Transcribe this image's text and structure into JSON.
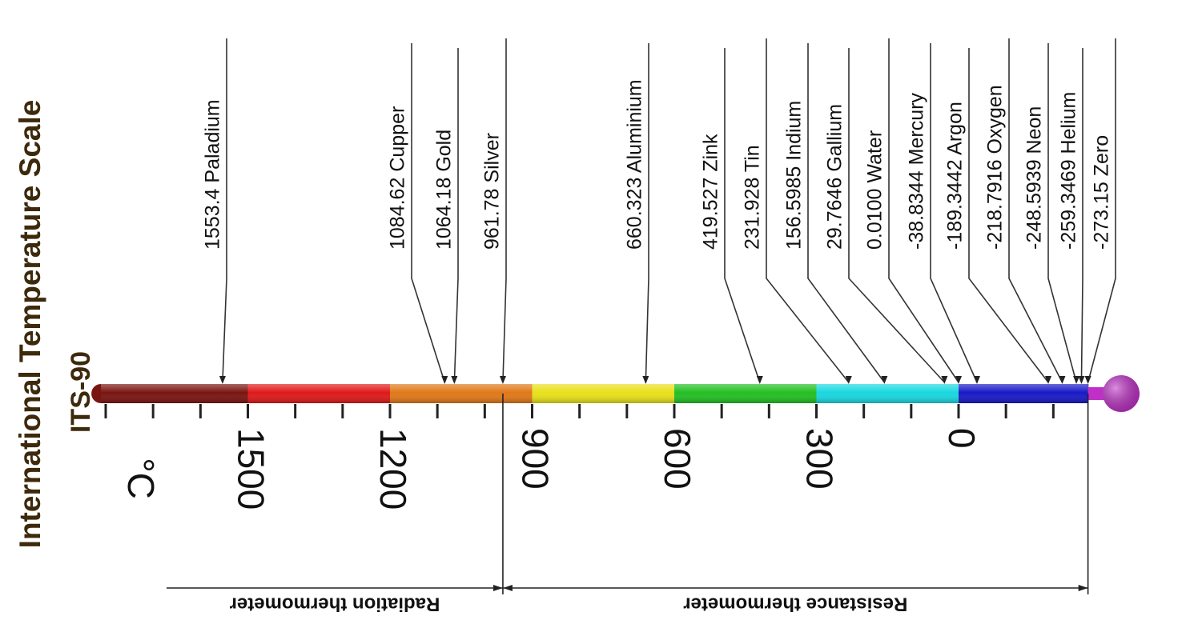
{
  "title": "International Temperature Scale",
  "subtitle": "ITS-90",
  "unit": "°C",
  "axis": {
    "ticks": [
      {
        "value": 1800,
        "label": ""
      },
      {
        "value": 1700,
        "label": ""
      },
      {
        "value": 1600,
        "label": ""
      },
      {
        "value": 1500,
        "label": "1500"
      },
      {
        "value": 1400,
        "label": ""
      },
      {
        "value": 1300,
        "label": ""
      },
      {
        "value": 1200,
        "label": "1200"
      },
      {
        "value": 1100,
        "label": ""
      },
      {
        "value": 1000,
        "label": ""
      },
      {
        "value": 900,
        "label": "900"
      },
      {
        "value": 800,
        "label": ""
      },
      {
        "value": 700,
        "label": ""
      },
      {
        "value": 600,
        "label": "600"
      },
      {
        "value": 500,
        "label": ""
      },
      {
        "value": 400,
        "label": ""
      },
      {
        "value": 300,
        "label": "300"
      },
      {
        "value": 200,
        "label": ""
      },
      {
        "value": 100,
        "label": ""
      },
      {
        "value": 0,
        "label": "0"
      },
      {
        "value": -100,
        "label": ""
      },
      {
        "value": -200,
        "label": ""
      }
    ]
  },
  "color_bands": [
    {
      "from": 1810,
      "to": 1500,
      "color": "#7a1410"
    },
    {
      "from": 1500,
      "to": 1200,
      "color": "#e01818"
    },
    {
      "from": 1200,
      "to": 900,
      "color": "#e07818"
    },
    {
      "from": 900,
      "to": 600,
      "color": "#e8e018"
    },
    {
      "from": 600,
      "to": 300,
      "color": "#22c022"
    },
    {
      "from": 300,
      "to": 0,
      "color": "#18d8e0"
    },
    {
      "from": 0,
      "to": -273.15,
      "color": "#1818c8"
    }
  ],
  "bulb_color": "#c030c8",
  "fixed_points": [
    {
      "value": 1553.4,
      "label": "1553.4 Paladium"
    },
    {
      "value": 1084.62,
      "label": "1084.62 Cupper"
    },
    {
      "value": 1064.18,
      "label": "1064.18  Gold"
    },
    {
      "value": 961.78,
      "label": "961.78  Silver"
    },
    {
      "value": 660.323,
      "label": "660.323 Aluminium"
    },
    {
      "value": 419.527,
      "label": "419.527 Zink"
    },
    {
      "value": 231.928,
      "label": "231.928 Tin"
    },
    {
      "value": 156.5985,
      "label": "156.5985 Indium"
    },
    {
      "value": 29.7646,
      "label": "29.7646 Gallium"
    },
    {
      "value": 0.01,
      "label": "0.0100 Water"
    },
    {
      "value": -38.8344,
      "label": "-38.8344 Mercury"
    },
    {
      "value": -189.3442,
      "label": "-189.3442 Argon"
    },
    {
      "value": -218.7916,
      "label": "-218.7916 Oxygen"
    },
    {
      "value": -248.5939,
      "label": "-248.5939 Neon"
    },
    {
      "value": -259.3469,
      "label": "-259.3469 Helium"
    },
    {
      "value": -273.15,
      "label": "-273.15 Zero"
    }
  ],
  "ranges": [
    {
      "from": 1810,
      "to": 961.78,
      "label": "Radiation thermometer"
    },
    {
      "from": 961.78,
      "to": -273.15,
      "label": "Resistance thermometer"
    }
  ]
}
